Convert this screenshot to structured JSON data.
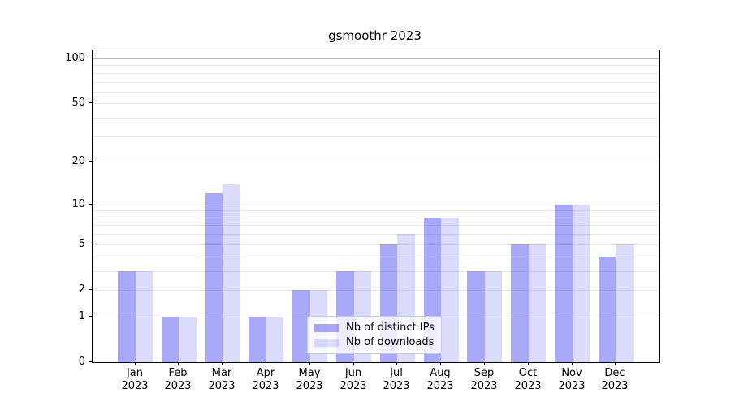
{
  "title": "gsmoothr 2023",
  "chart_data": {
    "type": "bar",
    "title": "gsmoothr 2023",
    "categories": [
      "Jan 2023",
      "Feb 2023",
      "Mar 2023",
      "Apr 2023",
      "May 2023",
      "Jun 2023",
      "Jul 2023",
      "Aug 2023",
      "Sep 2023",
      "Oct 2023",
      "Nov 2023",
      "Dec 2023"
    ],
    "month_labels": [
      "Jan",
      "Feb",
      "Mar",
      "Apr",
      "May",
      "Jun",
      "Jul",
      "Aug",
      "Sep",
      "Oct",
      "Nov",
      "Dec"
    ],
    "year_label": "2023",
    "series": [
      {
        "name": "Nb of distinct IPs",
        "values": [
          3,
          1,
          12,
          1,
          2,
          3,
          5,
          8,
          3,
          5,
          10,
          4
        ],
        "color": "#2828f0",
        "opacity": 0.4
      },
      {
        "name": "Nb of downloads",
        "values": [
          3,
          1,
          14,
          1,
          2,
          3,
          6,
          8,
          3,
          5,
          10,
          5
        ],
        "color": "#2828f0",
        "opacity": 0.17
      }
    ],
    "y_axis": {
      "scale": "log1p",
      "tick_values": [
        0,
        1,
        2,
        5,
        10,
        20,
        50,
        100
      ],
      "major_gridlines": [
        1,
        10,
        100
      ],
      "minor_gridlines": [
        2,
        3,
        4,
        5,
        6,
        7,
        8,
        9,
        20,
        30,
        40,
        50,
        60,
        70,
        80,
        90
      ],
      "range": [
        0,
        113
      ]
    },
    "legend": {
      "position": "lower-center",
      "entries": [
        "Nb of distinct IPs",
        "Nb of downloads"
      ]
    },
    "colors": {
      "minor_grid": "#e8e8e8",
      "major_grid": "#b9b9b9",
      "spine": "#000000",
      "text": "#000000",
      "background": "#ffffff"
    },
    "grid": true
  }
}
